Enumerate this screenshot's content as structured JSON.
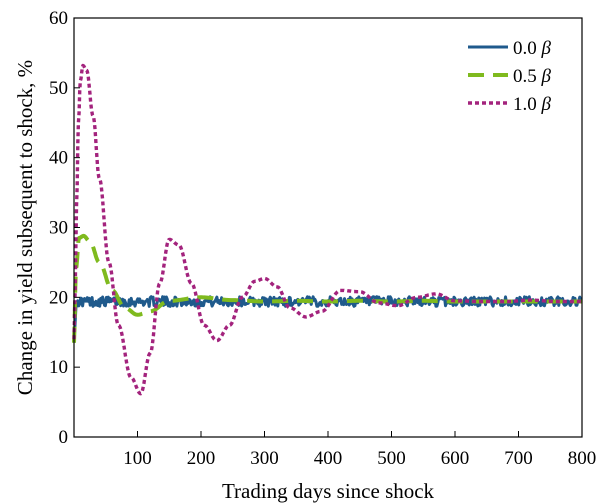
{
  "chart_data": {
    "type": "line",
    "xlabel": "Trading days since shock",
    "ylabel": "Change in yield subsequent to shock, %",
    "xlim": [
      0,
      800
    ],
    "ylim": [
      0,
      60
    ],
    "xticks": [
      100,
      200,
      300,
      400,
      500,
      600,
      700,
      800
    ],
    "yticks": [
      0,
      10,
      20,
      30,
      40,
      50,
      60
    ],
    "grid": false,
    "legend_position": "top-right",
    "series": [
      {
        "name": "0.0",
        "color": "#1f5a8c",
        "style": "solid",
        "x": [
          0,
          3,
          6,
          10,
          20,
          50,
          100,
          200,
          300,
          400,
          500,
          600,
          700,
          800
        ],
        "y": [
          13.5,
          18.5,
          19.5,
          19.4,
          19.4,
          19.4,
          19.4,
          19.4,
          19.4,
          19.4,
          19.4,
          19.4,
          19.4,
          19.4
        ],
        "noise": 0.7
      },
      {
        "name": "0.5",
        "color": "#7fba1e",
        "style": "dashed",
        "x": [
          0,
          3,
          8,
          15,
          25,
          40,
          60,
          80,
          100,
          120,
          150,
          200,
          250,
          300,
          350,
          400,
          450,
          500,
          550,
          600,
          650,
          700,
          800
        ],
        "y": [
          13.5,
          24,
          28.5,
          28.8,
          28,
          25,
          21,
          18.5,
          17.5,
          18,
          19.5,
          20,
          19.6,
          19.4,
          19.5,
          19.4,
          19.5,
          19.4,
          19.5,
          19.4,
          19.4,
          19.4,
          19.4
        ]
      },
      {
        "name": "1.0",
        "color": "#a3237d",
        "style": "dotted",
        "x": [
          0,
          2,
          4,
          7,
          10,
          14,
          20,
          30,
          40,
          55,
          70,
          90,
          105,
          120,
          135,
          150,
          165,
          185,
          205,
          225,
          245,
          265,
          285,
          300,
          320,
          340,
          365,
          390,
          420,
          450,
          480,
          510,
          540,
          570,
          600,
          640,
          680,
          720,
          760,
          800
        ],
        "y": [
          14,
          22,
          33,
          45,
          51,
          53.2,
          52.5,
          46,
          37,
          25,
          16,
          8.5,
          6.2,
          12,
          22,
          28.3,
          27.5,
          22,
          16,
          13.8,
          16,
          20,
          22.3,
          22.7,
          21.5,
          18.5,
          17.2,
          18,
          21,
          20.8,
          19.2,
          18.8,
          20,
          20.5,
          19.5,
          19.4,
          19.4,
          19.6,
          19.4,
          19.4
        ]
      }
    ]
  },
  "legend": {
    "items": [
      {
        "label": "0.0",
        "beta": "β"
      },
      {
        "label": "0.5",
        "beta": "β"
      },
      {
        "label": "1.0",
        "beta": "β"
      }
    ]
  }
}
